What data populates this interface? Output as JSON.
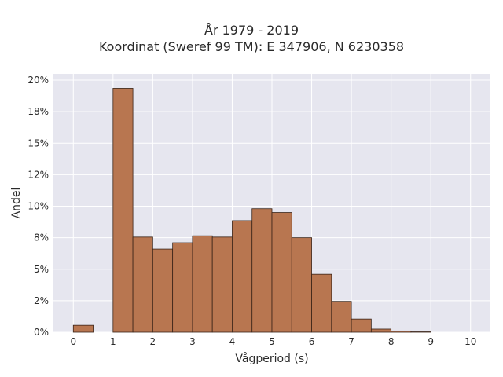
{
  "chart_data": {
    "type": "bar",
    "title_lines": [
      "År 1979 - 2019",
      "Koordinat (Sweref 99 TM): E 347906, N 6230358"
    ],
    "xlabel": "Vågperiod (s)",
    "ylabel": "Andel",
    "xlim": [
      -0.5,
      10.5
    ],
    "ylim": [
      0,
      20.5
    ],
    "xticks": [
      0,
      1,
      2,
      3,
      4,
      5,
      6,
      7,
      8,
      9,
      10
    ],
    "xtick_labels": [
      "0",
      "1",
      "2",
      "3",
      "4",
      "5",
      "6",
      "7",
      "8",
      "9",
      "10"
    ],
    "yticks": [
      0,
      2.5,
      5,
      7.5,
      10,
      12.5,
      15,
      17.5,
      20
    ],
    "ytick_labels": [
      "0%",
      "2%",
      "5%",
      "8%",
      "10%",
      "12%",
      "15%",
      "18%",
      "20%"
    ],
    "grid": true,
    "bin_width": 0.5,
    "bins": [
      {
        "x0": 0.0,
        "value": 0.55
      },
      {
        "x0": 1.0,
        "value": 19.35
      },
      {
        "x0": 1.5,
        "value": 7.55
      },
      {
        "x0": 2.0,
        "value": 6.6
      },
      {
        "x0": 2.5,
        "value": 7.1
      },
      {
        "x0": 3.0,
        "value": 7.65
      },
      {
        "x0": 3.5,
        "value": 7.55
      },
      {
        "x0": 4.0,
        "value": 8.85
      },
      {
        "x0": 4.5,
        "value": 9.8
      },
      {
        "x0": 5.0,
        "value": 9.5
      },
      {
        "x0": 5.5,
        "value": 7.5
      },
      {
        "x0": 6.0,
        "value": 4.6
      },
      {
        "x0": 6.5,
        "value": 2.45
      },
      {
        "x0": 7.0,
        "value": 1.05
      },
      {
        "x0": 7.5,
        "value": 0.25
      },
      {
        "x0": 8.0,
        "value": 0.1
      },
      {
        "x0": 8.5,
        "value": 0.03
      }
    ],
    "colors": {
      "bar": "#b87650",
      "bar_edge": "#3a2418",
      "plot_bg": "#e6e6ef",
      "grid": "#ffffff"
    }
  }
}
